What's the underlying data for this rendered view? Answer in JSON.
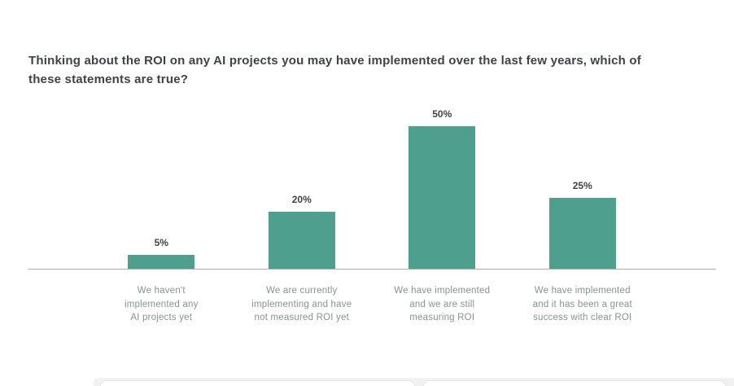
{
  "chart_data": {
    "type": "bar",
    "title": "Thinking about the ROI on any AI projects you may have implemented over the last few years, which of these statements are true?",
    "categories": [
      "We haven't\nimplemented any\nAI projects yet",
      "We are currently\nimplementing and have\nnot measured ROI yet",
      "We have implemented\nand we are still\nmeasuring ROI",
      "We have implemented\nand it has been a great\nsuccess with clear ROI"
    ],
    "values": [
      5,
      20,
      50,
      25
    ],
    "value_labels": [
      "5%",
      "20%",
      "50%",
      "25%"
    ],
    "bar_color": "#4f9f8e",
    "xlabel": "",
    "ylabel": "",
    "ylim": [
      0,
      55
    ],
    "grid": false,
    "legend": false,
    "axis_line_color": "#aab1b1"
  }
}
